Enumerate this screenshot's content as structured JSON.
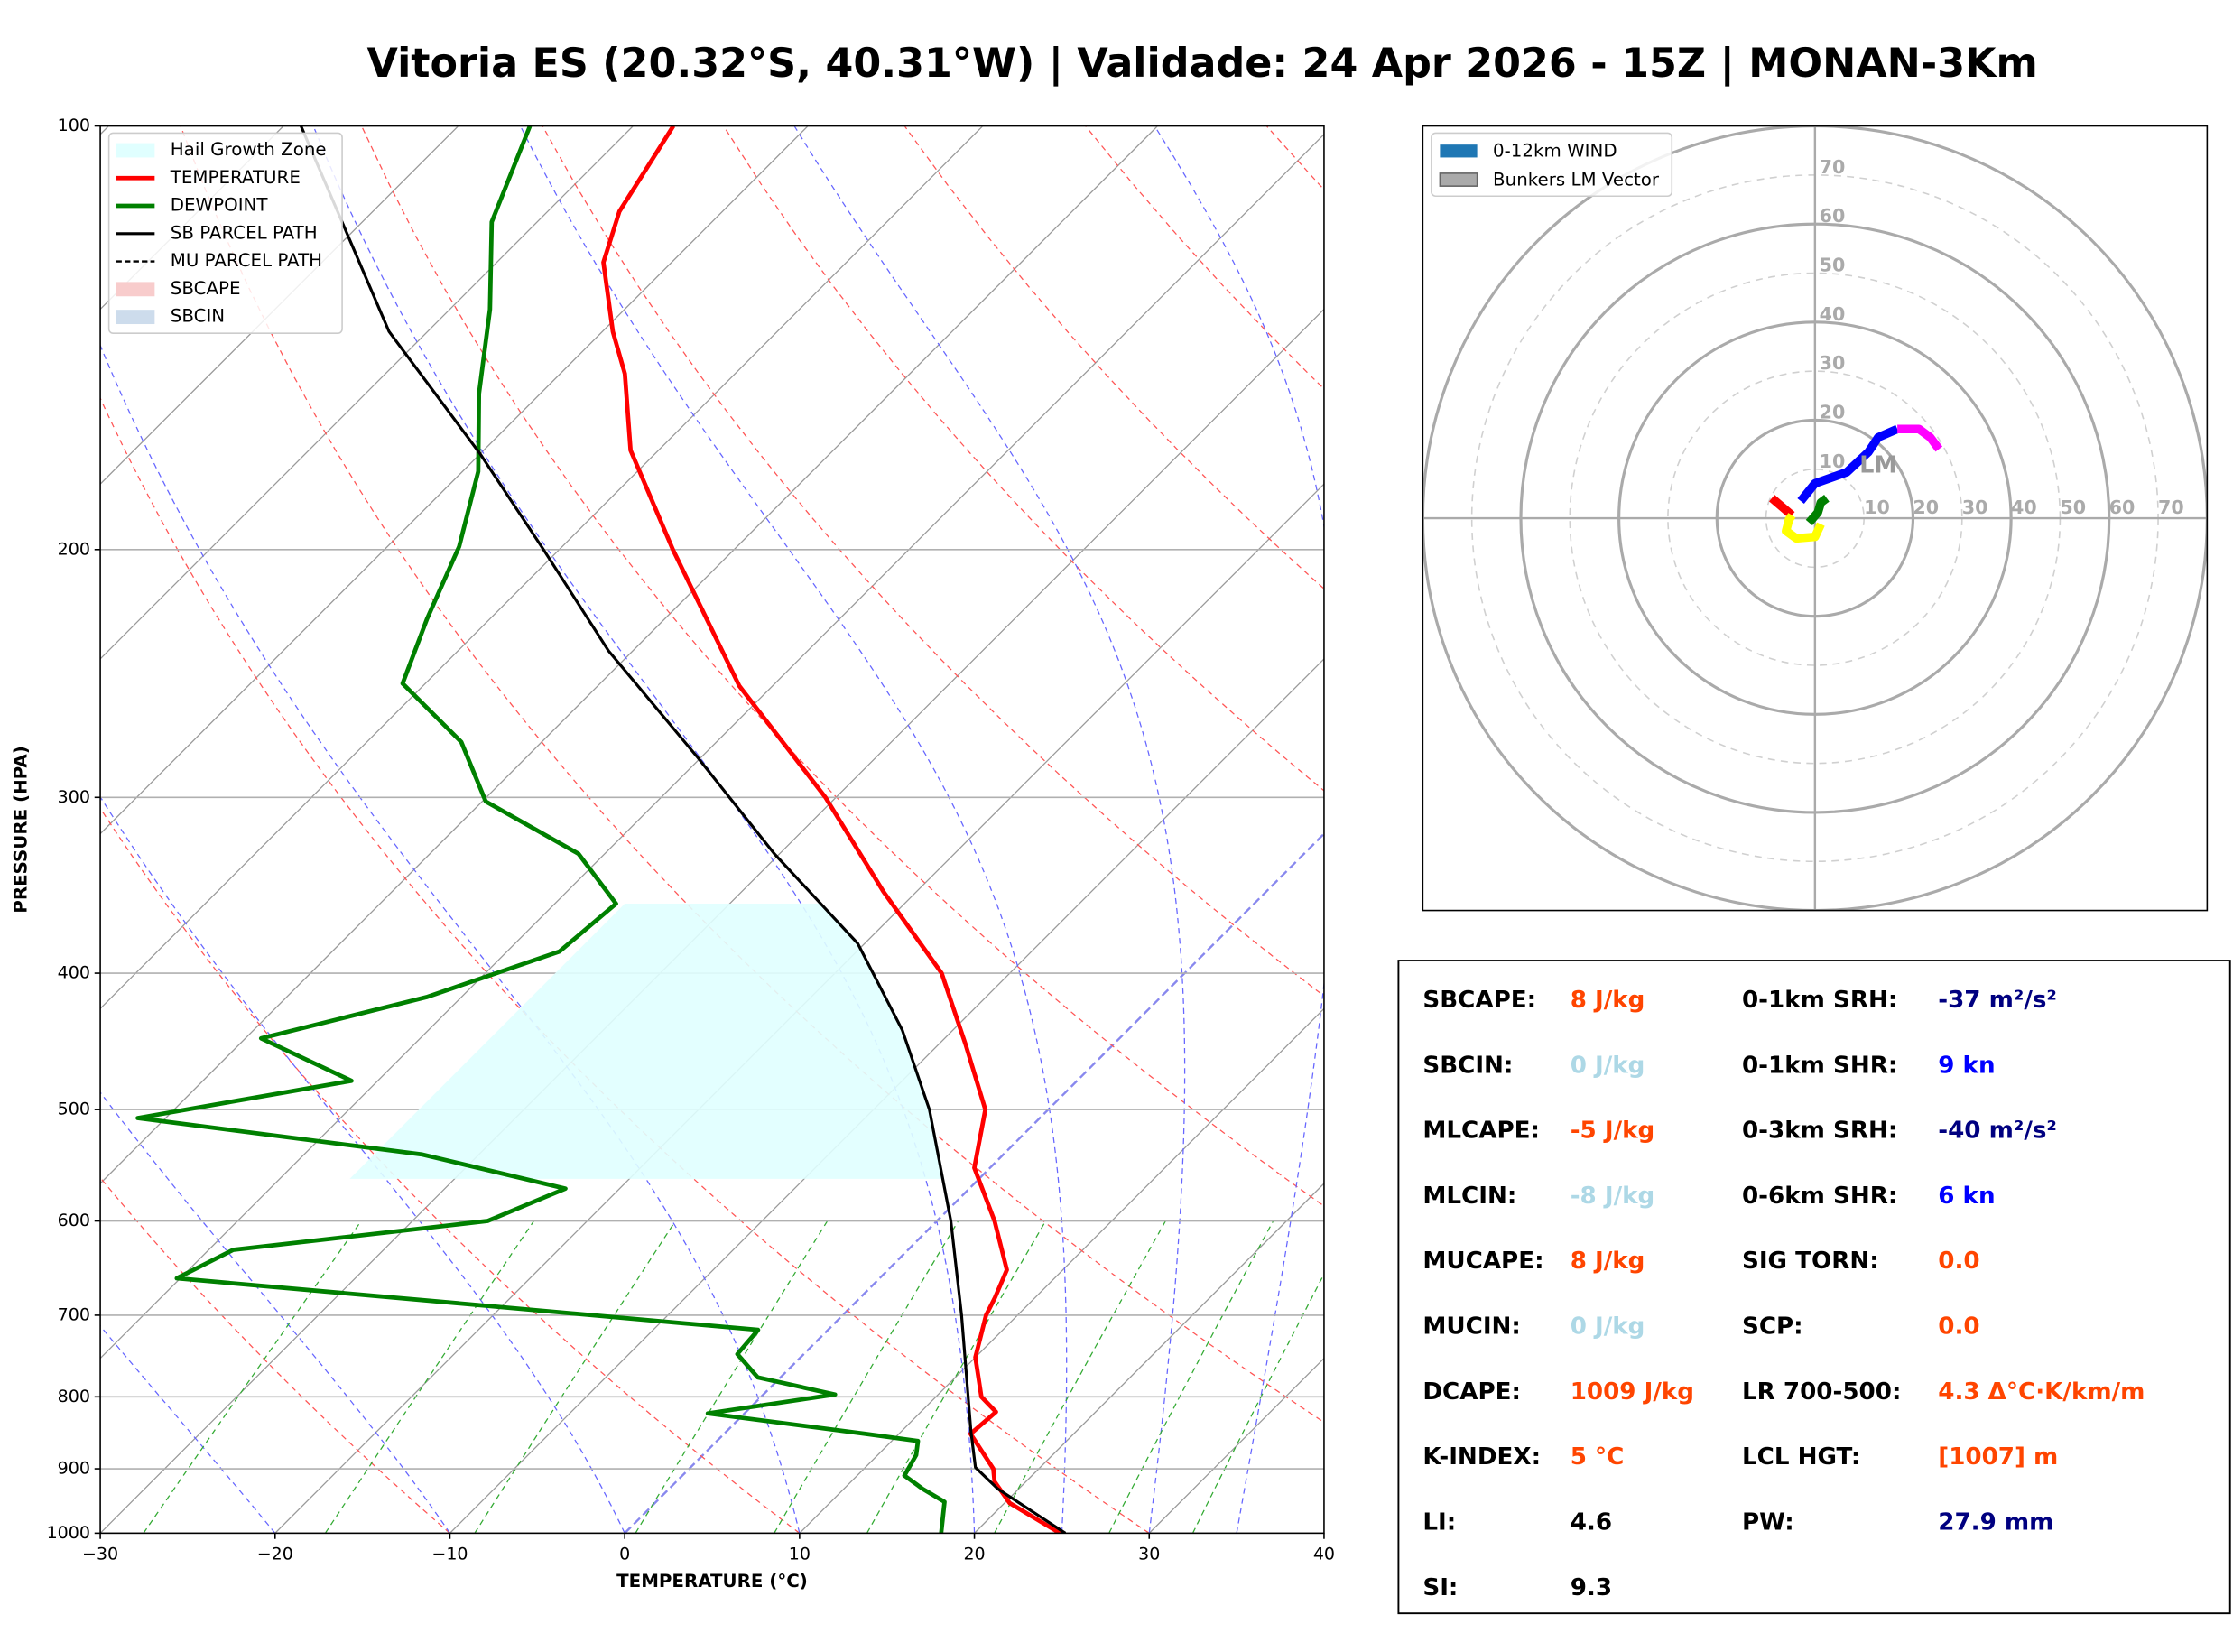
{
  "title": "Vitoria ES (20.32°S, 40.31°W) | Validade: 24 Apr 2026 - 15Z | MONAN-3Km",
  "chart_data": [
    {
      "type": "skewt",
      "x_label": "TEMPERATURE (°C)",
      "y_label": "PRESSURE (HPA)",
      "xlim": [
        -30,
        40
      ],
      "ylim": [
        1000,
        100
      ],
      "log_y": true,
      "grid": true,
      "legend": "upper left",
      "xticks": [
        {
          "value": -30,
          "label": "−30"
        },
        {
          "value": -20,
          "label": "−20"
        },
        {
          "value": -10,
          "label": "−10"
        },
        0,
        10,
        20,
        30,
        40
      ],
      "yticks": [
        100,
        200,
        300,
        400,
        500,
        600,
        700,
        800,
        900,
        1000
      ],
      "series": [
        {
          "name": "TEMPERATURE",
          "color": "#ff0000",
          "style": "solid",
          "width": 3,
          "pressure": [
            1000,
            952,
            919,
            900,
            850,
            820,
            800,
            750,
            700,
            680,
            650,
            600,
            550,
            500,
            450,
            400,
            350,
            300,
            250,
            200,
            170,
            150,
            140,
            125,
            115,
            100
          ],
          "values": [
            24.9,
            20.3,
            18.2,
            17.4,
            14.1,
            14.3,
            12.6,
            10.0,
            8.2,
            7.7,
            6.8,
            3.3,
            -0.9,
            -3.6,
            -8.4,
            -13.9,
            -21.9,
            -30.6,
            -41.9,
            -53.5,
            -61.6,
            -66.3,
            -69.4,
            -73.9,
            -75.9,
            -77.7
          ]
        },
        {
          "name": "DEWPOINT",
          "color": "#008000",
          "style": "solid",
          "width": 3,
          "pressure": [
            1000,
            950,
            930,
            910,
            880,
            860,
            850,
            822,
            797,
            775,
            746,
            717,
            659,
            629,
            600,
            569,
            538,
            507,
            477,
            445,
            416,
            386,
            357,
            329,
            302,
            274,
            249,
            224,
            199,
            176,
            155,
            135,
            117,
            100
          ],
          "values": [
            18.1,
            16.5,
            14.5,
            12.7,
            12.2,
            11.5,
            8.1,
            -2.1,
            4.1,
            -1.3,
            -3.8,
            -4.0,
            -40.2,
            -38.6,
            -25.7,
            -23.1,
            -33.3,
            -51.6,
            -41.5,
            -49.1,
            -42.0,
            -37.0,
            -36.5,
            -41.5,
            -49.8,
            -54.6,
            -61.3,
            -63.6,
            -65.9,
            -69.1,
            -73.5,
            -77.7,
            -82.6,
            -85.9
          ]
        },
        {
          "name": "SB PARCEL PATH",
          "color": "#000000",
          "style": "solid",
          "width": 2,
          "pressure": [
            1000,
            930,
            898,
            847,
            700,
            600,
            500,
            439,
            381,
            329,
            281,
            236,
            200,
            171,
            140,
            100
          ],
          "values": [
            25.2,
            18.8,
            16.3,
            14.0,
            6.8,
            0.8,
            -6.8,
            -12.9,
            -20.4,
            -30.3,
            -40.2,
            -51.4,
            -60.9,
            -70.0,
            -82.2,
            -99.0
          ]
        },
        {
          "name": "MU PARCEL PATH",
          "color": "#000000",
          "style": "dashed",
          "width": 1.5,
          "pressure": [
            1000,
            930,
            898,
            847,
            700,
            600,
            500,
            439,
            381,
            329,
            281,
            236,
            200,
            171,
            140,
            100
          ],
          "values": [
            25.2,
            18.8,
            16.3,
            14.0,
            6.8,
            0.8,
            -6.8,
            -12.9,
            -20.4,
            -30.3,
            -40.2,
            -51.4,
            -60.9,
            -70.0,
            -82.2,
            -99.0
          ]
        }
      ],
      "shading": [
        {
          "name": "Hail Growth Zone",
          "color": "#e0ffff",
          "pressure": [
            560,
            357
          ],
          "edge_temperature": -36
        },
        {
          "name": "SBCAPE",
          "color": "#f8cccc"
        },
        {
          "name": "SBCIN",
          "color": "#cddcec"
        }
      ]
    },
    {
      "type": "hodograph",
      "rlim": [
        0,
        80
      ],
      "rticks": [
        10,
        20,
        30,
        40,
        50,
        60,
        70
      ],
      "major_rings": [
        20,
        40,
        60,
        80
      ],
      "legend": "upper left",
      "wind_legend": {
        "name": "0-12km WIND",
        "color": "#1f77b4"
      },
      "segments": [
        {
          "color": "#ff0000",
          "u": [
            -8.8,
            -4.7
          ],
          "v": [
            4.1,
            0.6
          ]
        },
        {
          "color": "#ffff00",
          "u": [
            -4.7,
            -5.3,
            -5.9,
            -3.8,
            0,
            1.2
          ],
          "v": [
            0.6,
            -0.3,
            -2.6,
            -4.1,
            -3.8,
            -1.2
          ]
        },
        {
          "color": "#008000",
          "u": [
            -1.2,
            0.6,
            1.2,
            2.4
          ],
          "v": [
            -0.9,
            1.2,
            3.2,
            4.1
          ]
        },
        {
          "color": "#0000ff",
          "u": [
            -2.9,
            0,
            6.5,
            10.9,
            12.9,
            16.8
          ],
          "v": [
            3.5,
            7.1,
            9.4,
            13.5,
            16.5,
            18.2
          ]
        },
        {
          "color": "#ff00ff",
          "u": [
            16.8,
            21.2,
            23.5,
            25.3
          ],
          "v": [
            18.2,
            18.2,
            16.5,
            14.1
          ]
        }
      ],
      "bunkers_lm": {
        "name": "Bunkers LM Vector",
        "label": "LM",
        "u": 12.9,
        "v": 10.6,
        "color": "#999999"
      }
    }
  ],
  "indices": {
    "left": [
      {
        "label": "SBCAPE:",
        "value": "8 J/kg",
        "color": "#ff4500"
      },
      {
        "label": "SBCIN:",
        "value": "0 J/kg",
        "color": "#add8e6"
      },
      {
        "label": "MLCAPE:",
        "value": "-5 J/kg",
        "color": "#ff4500"
      },
      {
        "label": "MLCIN:",
        "value": "-8 J/kg",
        "color": "#add8e6"
      },
      {
        "label": "MUCAPE:",
        "value": "8 J/kg",
        "color": "#ff4500"
      },
      {
        "label": "MUCIN:",
        "value": "0 J/kg",
        "color": "#add8e6"
      },
      {
        "label": "DCAPE:",
        "value": "1009 J/kg",
        "color": "#ff4500"
      },
      {
        "label": "K-INDEX:",
        "value": "5 °C",
        "color": "#ff4500"
      },
      {
        "label": "LI:",
        "value": "4.6",
        "color": "#000000"
      },
      {
        "label": "SI:",
        "value": "9.3",
        "color": "#000000"
      }
    ],
    "right": [
      {
        "label": "0-1km SRH:",
        "value": "-37 m²/s²",
        "color": "#000080"
      },
      {
        "label": "0-1km SHR:",
        "value": "9 kn",
        "color": "#0000ff"
      },
      {
        "label": "0-3km SRH:",
        "value": "-40 m²/s²",
        "color": "#000080"
      },
      {
        "label": "0-6km SHR:",
        "value": "6 kn",
        "color": "#0000ff"
      },
      {
        "label": "SIG TORN:",
        "value": "0.0",
        "color": "#ff4500"
      },
      {
        "label": "SCP:",
        "value": "0.0",
        "color": "#ff4500"
      },
      {
        "label": "LR 700-500:",
        "value": "4.3 Δ°C·K/km/m",
        "color": "#ff4500"
      },
      {
        "label": "LCL HGT:",
        "value": "[1007] m",
        "color": "#ff4500"
      },
      {
        "label": "PW:",
        "value": "27.9 mm",
        "color": "#000080"
      }
    ]
  }
}
